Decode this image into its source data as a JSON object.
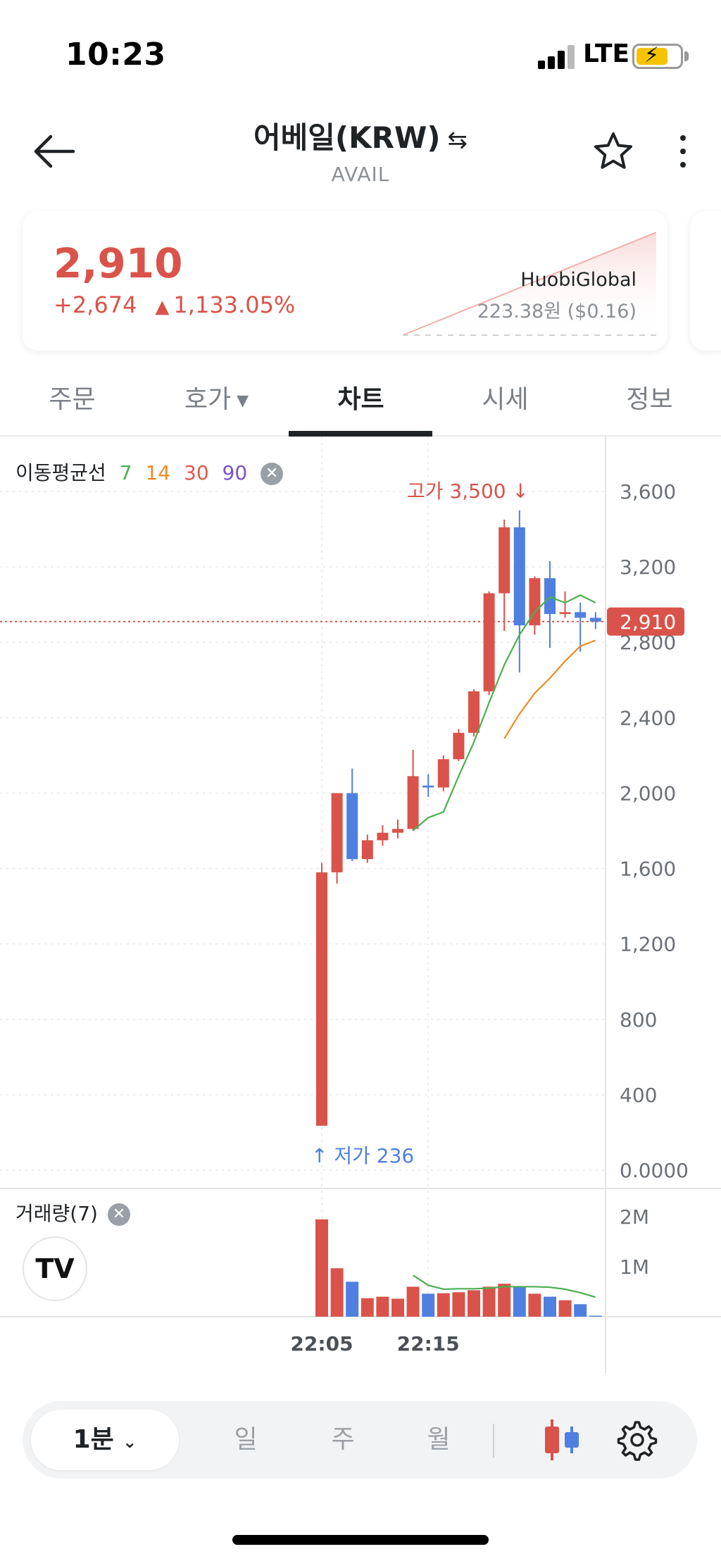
{
  "status_bar": {
    "time": "10:23",
    "network": "LTE"
  },
  "header": {
    "title": "어베일(KRW)",
    "subtitle": "AVAIL"
  },
  "price_card": {
    "price": "2,910",
    "change_abs": "+2,674",
    "change_pct": "1,133.05%",
    "exchange_name": "HuobiGlobal",
    "exchange_price": "223.38원 ($0.16)"
  },
  "tabs": [
    {
      "label": "주문",
      "active": false
    },
    {
      "label": "호가",
      "active": false
    },
    {
      "label": "차트",
      "active": true
    },
    {
      "label": "시세",
      "active": false
    },
    {
      "label": "정보",
      "active": false
    }
  ],
  "chart": {
    "ma_legend": {
      "label": "이동평균선",
      "periods": [
        "7",
        "14",
        "30",
        "90"
      ],
      "colors": [
        "#4caf50",
        "#f08a24",
        "#e0574f",
        "#7b52c9"
      ]
    },
    "high_label": "고가 3,500",
    "low_label": "저가 236",
    "current_price_label": "2,910",
    "volume_legend": "거래량(7)",
    "volume_axis_labels": [
      "2M",
      "1M"
    ],
    "time_labels": [
      "22:05",
      "22:15"
    ],
    "logo_text": "TV",
    "colors": {
      "up": "#d9534a",
      "down": "#4f7fe0",
      "ma7": "#4caf50",
      "ma14": "#f08a24"
    }
  },
  "chart_data": {
    "type": "candlestick",
    "y_ticks": [
      "3,600",
      "3,200",
      "2,800",
      "2,400",
      "2,000",
      "1,600",
      "1,200",
      "800",
      "400",
      "0.0000"
    ],
    "y_tick_values": [
      3600,
      3200,
      2800,
      2400,
      2000,
      1600,
      1200,
      800,
      400,
      0
    ],
    "ylim": [
      0,
      3800
    ],
    "x_ticks": [
      "22:05",
      "22:15"
    ],
    "candles": [
      {
        "o": 236,
        "h": 1630,
        "l": 236,
        "c": 1580,
        "v": 1.95
      },
      {
        "o": 1580,
        "h": 2000,
        "l": 1520,
        "c": 2000,
        "v": 0.97
      },
      {
        "o": 2000,
        "h": 2130,
        "l": 1640,
        "c": 1650,
        "v": 0.7
      },
      {
        "o": 1650,
        "h": 1780,
        "l": 1630,
        "c": 1750,
        "v": 0.37
      },
      {
        "o": 1750,
        "h": 1830,
        "l": 1720,
        "c": 1790,
        "v": 0.4
      },
      {
        "o": 1790,
        "h": 1860,
        "l": 1760,
        "c": 1810,
        "v": 0.36
      },
      {
        "o": 1810,
        "h": 2230,
        "l": 1800,
        "c": 2090,
        "v": 0.6
      },
      {
        "o": 2040,
        "h": 2100,
        "l": 1980,
        "c": 2030,
        "v": 0.46
      },
      {
        "o": 2030,
        "h": 2200,
        "l": 2010,
        "c": 2180,
        "v": 0.47
      },
      {
        "o": 2180,
        "h": 2340,
        "l": 2170,
        "c": 2320,
        "v": 0.49
      },
      {
        "o": 2320,
        "h": 2550,
        "l": 2300,
        "c": 2540,
        "v": 0.53
      },
      {
        "o": 2540,
        "h": 3070,
        "l": 2520,
        "c": 3060,
        "v": 0.6
      },
      {
        "o": 3060,
        "h": 3450,
        "l": 2860,
        "c": 3410,
        "v": 0.66
      },
      {
        "o": 3410,
        "h": 3500,
        "l": 2640,
        "c": 2890,
        "v": 0.61
      },
      {
        "o": 2890,
        "h": 3150,
        "l": 2840,
        "c": 3140,
        "v": 0.46
      },
      {
        "o": 3140,
        "h": 3230,
        "l": 2770,
        "c": 2950,
        "v": 0.4
      },
      {
        "o": 2950,
        "h": 3070,
        "l": 2930,
        "c": 2960,
        "v": 0.33
      },
      {
        "o": 2960,
        "h": 3010,
        "l": 2750,
        "c": 2930,
        "v": 0.25
      },
      {
        "o": 2930,
        "h": 2960,
        "l": 2870,
        "c": 2910,
        "v": 0.02
      }
    ],
    "ma7": [
      null,
      null,
      null,
      null,
      null,
      null,
      1802,
      1870,
      1900,
      2090,
      2270,
      2480,
      2680,
      2840,
      2960,
      3040,
      3010,
      3050,
      3010
    ],
    "ma14": [
      null,
      null,
      null,
      null,
      null,
      null,
      null,
      null,
      null,
      null,
      null,
      null,
      2290,
      2420,
      2530,
      2610,
      2700,
      2780,
      2810
    ],
    "volume_ma": [
      null,
      null,
      null,
      null,
      null,
      null,
      0.83,
      0.63,
      0.55,
      0.56,
      0.56,
      0.57,
      0.6,
      0.6,
      0.6,
      0.59,
      0.55,
      0.48,
      0.39
    ],
    "volume_ylim": [
      0,
      2.2
    ],
    "current_price": 2910,
    "high": 3500,
    "low": 236
  },
  "bottom_bar": {
    "timeframe_active": "1분",
    "timeframes": [
      "일",
      "주",
      "월"
    ]
  }
}
